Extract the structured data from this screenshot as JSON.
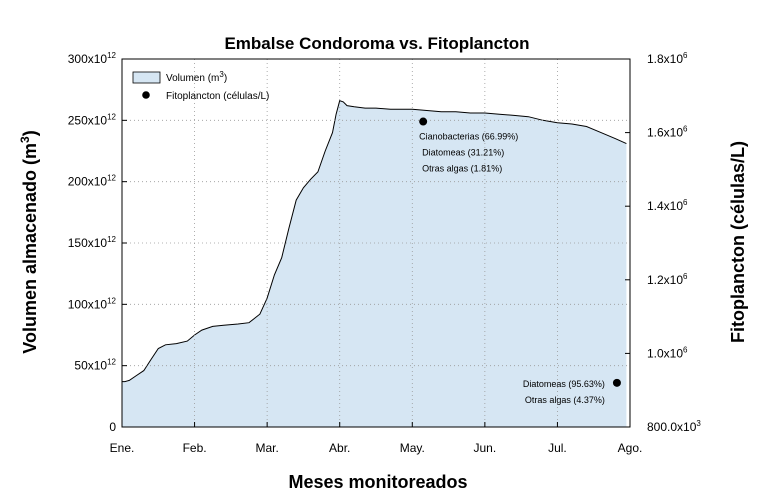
{
  "chart_data": {
    "type": "area",
    "title": "Embalse Condoroma vs. Fitoplancton",
    "xlabel": "Meses monitoreados",
    "ylabel": "Volumen almacenado (m",
    "ylabel_sup": "3",
    "ylabel_suffix": ")",
    "y2label": "Fitoplancton (células/L)",
    "categories": [
      "Ene.",
      "Feb.",
      "Mar.",
      "Abr.",
      "May.",
      "Jun.",
      "Jul.",
      "Ago."
    ],
    "ylim": [
      0,
      300
    ],
    "y_ticks": [
      {
        "value": 0,
        "base": "0",
        "exp": ""
      },
      {
        "value": 50,
        "base": "50x10",
        "exp": "12"
      },
      {
        "value": 100,
        "base": "100x10",
        "exp": "12"
      },
      {
        "value": 150,
        "base": "150x10",
        "exp": "12"
      },
      {
        "value": 200,
        "base": "200x10",
        "exp": "12"
      },
      {
        "value": 250,
        "base": "250x10",
        "exp": "12"
      },
      {
        "value": 300,
        "base": "300x10",
        "exp": "12"
      }
    ],
    "y2lim": [
      800000,
      1800000
    ],
    "y2_ticks": [
      {
        "value": 800000,
        "base": "800.0x10",
        "exp": "3"
      },
      {
        "value": 1000000,
        "base": "1.0x10",
        "exp": "6"
      },
      {
        "value": 1200000,
        "base": "1.2x10",
        "exp": "6"
      },
      {
        "value": 1400000,
        "base": "1.4x10",
        "exp": "6"
      },
      {
        "value": 1600000,
        "base": "1.6x10",
        "exp": "6"
      },
      {
        "value": 1800000,
        "base": "1.8x10",
        "exp": "6"
      }
    ],
    "grid": true,
    "legend_placement": "top-left",
    "series": [
      {
        "name": "Volumen (m",
        "name_sup": "3",
        "name_suffix": ")",
        "kind": "area",
        "axis": "left",
        "unit_scale": "x10^12 m3",
        "x": [
          0,
          0.04,
          0.1,
          0.2,
          0.3,
          0.4,
          0.5,
          0.6,
          0.75,
          0.9,
          1.0,
          1.1,
          1.25,
          1.4,
          1.6,
          1.75,
          1.9,
          2.0,
          2.1,
          2.2,
          2.3,
          2.4,
          2.5,
          2.6,
          2.7,
          2.8,
          2.9,
          2.95,
          3.0,
          3.05,
          3.1,
          3.2,
          3.35,
          3.5,
          3.7,
          3.9,
          4.0,
          4.2,
          4.4,
          4.6,
          4.8,
          5.0,
          5.2,
          5.4,
          5.6,
          5.8,
          6.0,
          6.2,
          6.4,
          6.6,
          6.8,
          6.95
        ],
        "values": [
          37,
          37,
          38,
          42,
          46,
          55,
          64,
          67,
          68,
          70,
          75,
          79,
          82,
          83,
          84,
          85,
          92,
          105,
          124,
          138,
          162,
          185,
          195,
          202,
          208,
          225,
          240,
          255,
          266,
          265,
          262,
          261,
          260,
          260,
          259,
          259,
          259,
          258,
          257,
          257,
          256,
          256,
          255,
          254,
          253,
          250,
          248,
          247,
          245,
          240,
          235,
          231
        ],
        "color": "#d6e6f3"
      },
      {
        "name": "Fitoplancton (células/L)",
        "kind": "scatter",
        "axis": "right",
        "points": [
          {
            "x": 4.15,
            "y": 1630000
          },
          {
            "x": 6.82,
            "y": 920000
          }
        ],
        "color": "#000000"
      }
    ],
    "annotations": [
      [
        "Cianobacterias (66.99%)",
        "Diatomeas (31.21%)",
        "Otras algas (1.81%)"
      ],
      [
        "Diatomeas (95.63%)",
        "Otras algas (4.37%)"
      ]
    ]
  }
}
